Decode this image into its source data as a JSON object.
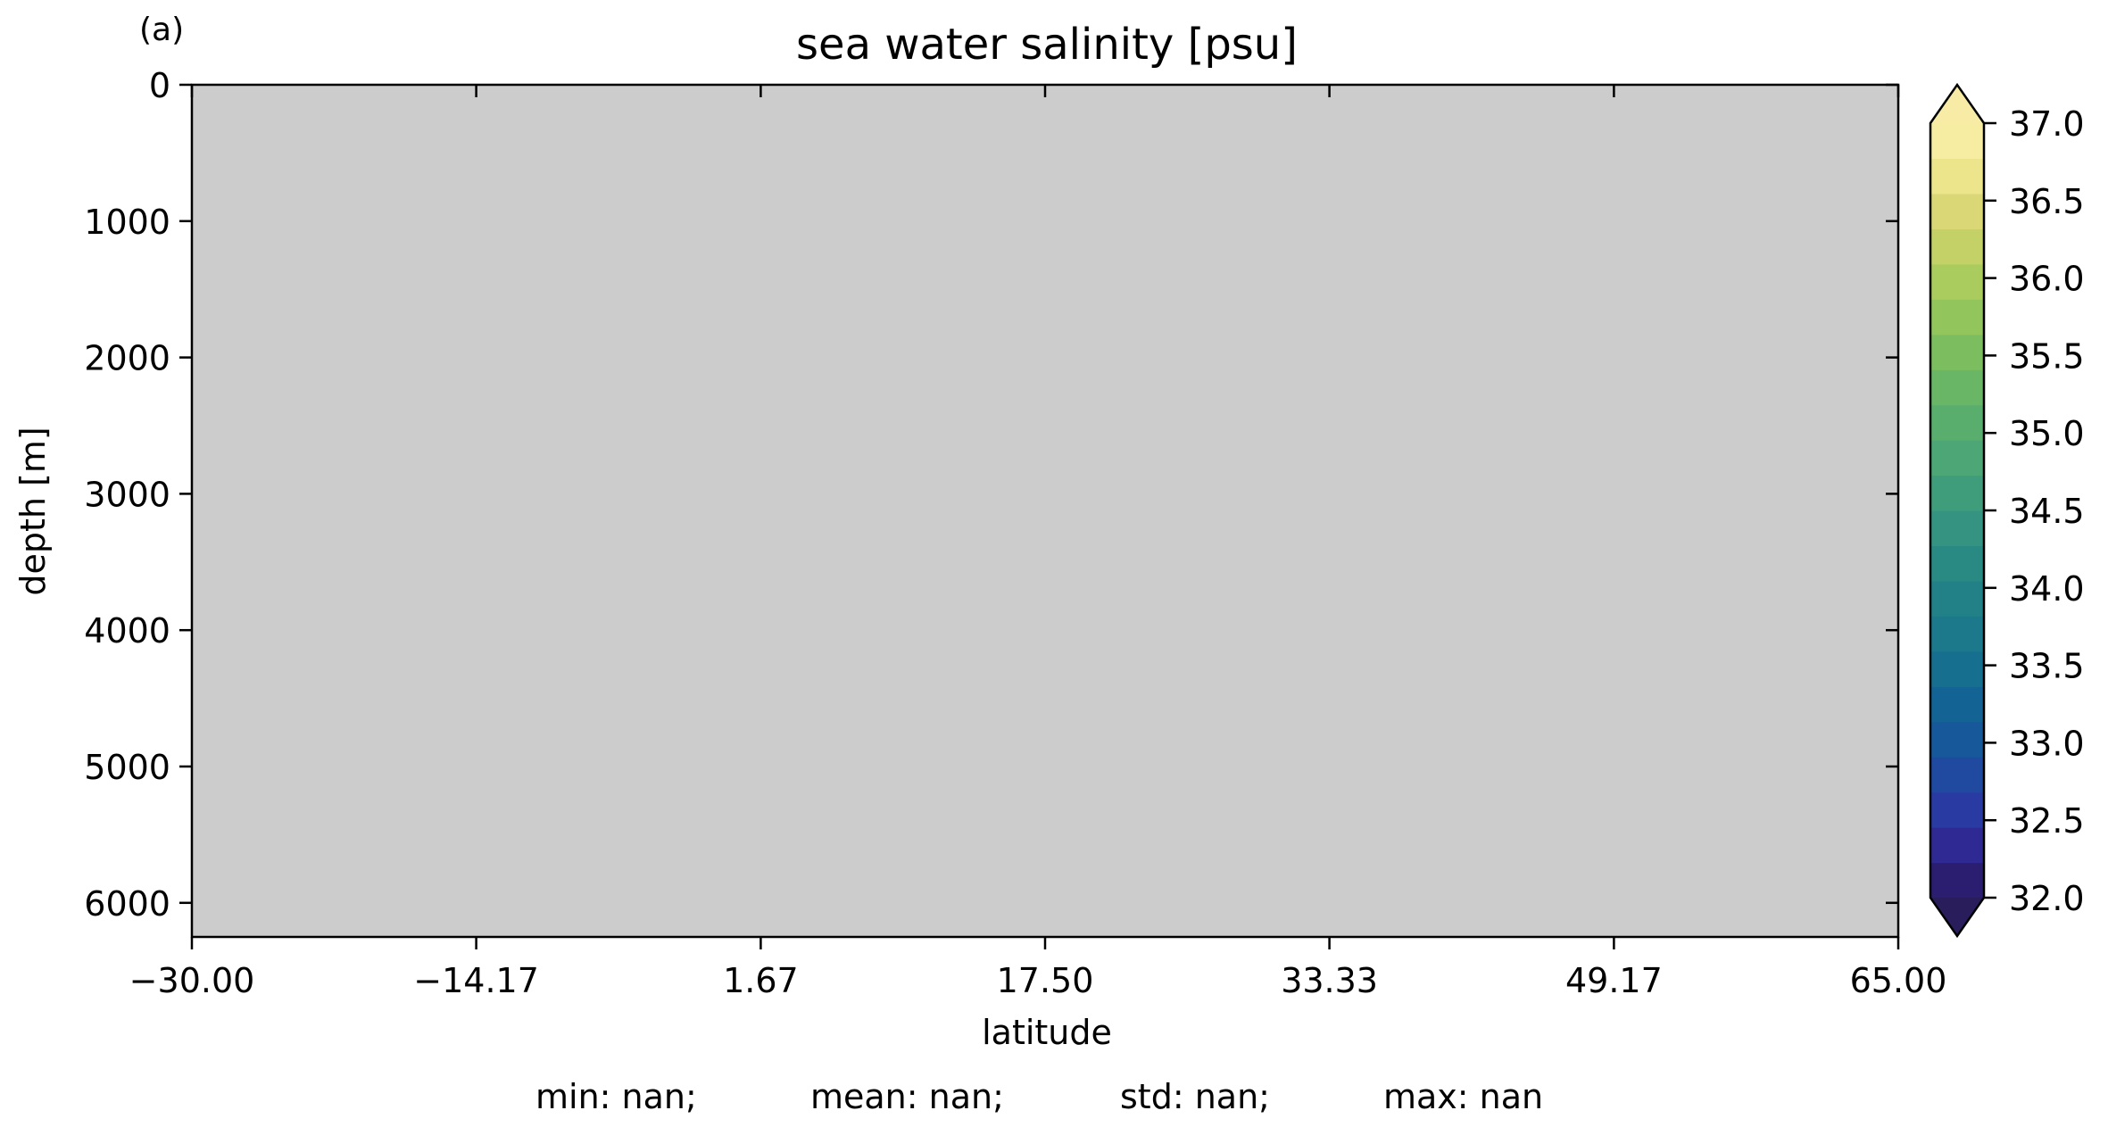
{
  "chart_data": {
    "type": "heatmap",
    "panel_label": "(a)",
    "title": "sea water salinity [psu]",
    "xlabel": "latitude",
    "ylabel": "depth [m]",
    "xlim": [
      -30.0,
      65.0
    ],
    "ylim": [
      0,
      6250
    ],
    "y_inverted": true,
    "x_ticks": [
      -30.0,
      -14.17,
      1.67,
      17.5,
      33.33,
      49.17,
      65.0
    ],
    "x_tick_labels": [
      "−30.00",
      "−14.17",
      "1.67",
      "17.50",
      "33.33",
      "49.17",
      "65.00"
    ],
    "y_ticks": [
      0,
      1000,
      2000,
      3000,
      4000,
      5000,
      6000
    ],
    "y_tick_labels": [
      "0",
      "1000",
      "2000",
      "3000",
      "4000",
      "5000",
      "6000"
    ],
    "field": "no valid data (all NaN) — plot area filled with missing-value grey",
    "missing_color": "#cccccc",
    "colorbar": {
      "min": 32.0,
      "max": 37.0,
      "extend": "both",
      "ticks": [
        32.0,
        32.5,
        33.0,
        33.5,
        34.0,
        34.5,
        35.0,
        35.5,
        36.0,
        36.5,
        37.0
      ],
      "tick_labels": [
        "32.0",
        "32.5",
        "33.0",
        "33.5",
        "34.0",
        "34.5",
        "35.0",
        "35.5",
        "36.0",
        "36.5",
        "37.0"
      ],
      "colors": [
        "#2b1d6f",
        "#2f2a93",
        "#2a3aa3",
        "#1f4aa0",
        "#16589a",
        "#136495",
        "#176f8f",
        "#1c788b",
        "#218187",
        "#298a84",
        "#349481",
        "#3f9d7c",
        "#4ca675",
        "#59ae6d",
        "#69b666",
        "#7cbe5f",
        "#92c55c",
        "#aacb5e",
        "#c3d167",
        "#dad876",
        "#ece58b",
        "#f6eda2"
      ],
      "under_color": "#2a1d5c",
      "over_color": "#f7eba6"
    },
    "stats": [
      "min: nan;",
      "mean: nan;",
      "std: nan;",
      "max: nan"
    ]
  }
}
